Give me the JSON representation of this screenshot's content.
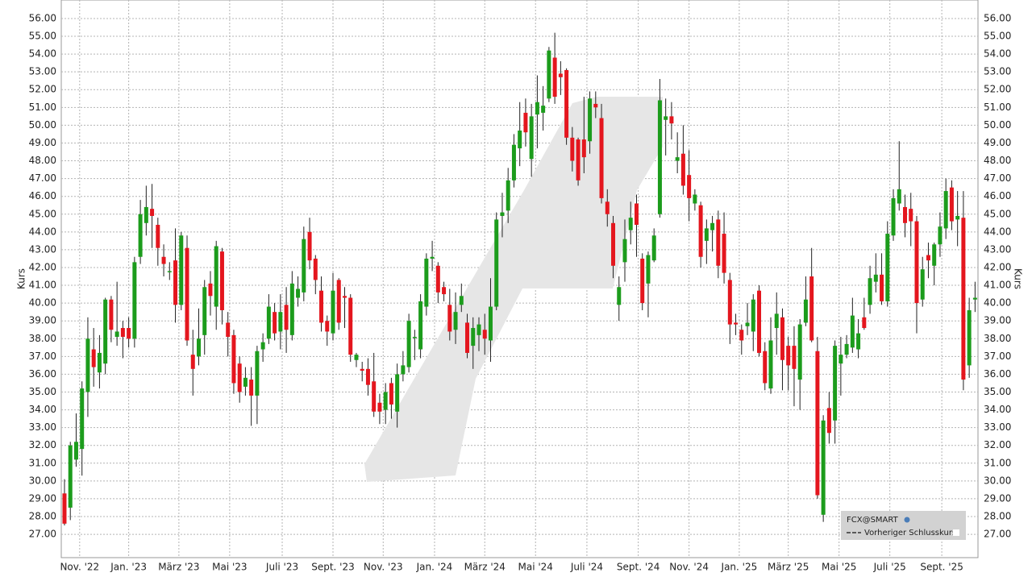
{
  "chart_data": {
    "type": "candlestick",
    "ylabel": "Kurs",
    "grid": true,
    "up_color": "#1c9c1c",
    "down_color": "#e4161e",
    "legend": "lower right",
    "legend_items": [
      "FCX@SMART",
      "Vorheriger Schlusskurs"
    ],
    "xlim": [
      -0.55,
      156.5
    ],
    "ylim": [
      25.69,
      57.04
    ],
    "xticks": [
      {
        "value": 2.6,
        "label": "Nov. '22"
      },
      {
        "value": 11.0,
        "label": "Jan. '23"
      },
      {
        "value": 19.6,
        "label": "März '23"
      },
      {
        "value": 28.3,
        "label": "Mai '23"
      },
      {
        "value": 37.3,
        "label": "Juli '23"
      },
      {
        "value": 46.0,
        "label": "Sept. '23"
      },
      {
        "value": 54.6,
        "label": "Nov. '23"
      },
      {
        "value": 63.4,
        "label": "Jan. '24"
      },
      {
        "value": 72.0,
        "label": "März '24"
      },
      {
        "value": 80.7,
        "label": "Mai '24"
      },
      {
        "value": 89.5,
        "label": "Juli '24"
      },
      {
        "value": 98.3,
        "label": "Sept. '24"
      },
      {
        "value": 107.0,
        "label": "Nov. '24"
      },
      {
        "value": 115.6,
        "label": "Jan. '25"
      },
      {
        "value": 124.0,
        "label": "März '25"
      },
      {
        "value": 132.7,
        "label": "Mai '25"
      },
      {
        "value": 141.4,
        "label": "Juli '25"
      },
      {
        "value": 150.3,
        "label": "Sept. '25"
      }
    ],
    "yticks": [
      {
        "value": 27,
        "label": "27.00"
      },
      {
        "value": 28,
        "label": "28.00"
      },
      {
        "value": 29,
        "label": "29.00"
      },
      {
        "value": 30,
        "label": "30.00"
      },
      {
        "value": 31,
        "label": "31.00"
      },
      {
        "value": 32,
        "label": "32.00"
      },
      {
        "value": 33,
        "label": "33.00"
      },
      {
        "value": 34,
        "label": "34.00"
      },
      {
        "value": 35,
        "label": "35.00"
      },
      {
        "value": 36,
        "label": "36.00"
      },
      {
        "value": 37,
        "label": "37.00"
      },
      {
        "value": 38,
        "label": "38.00"
      },
      {
        "value": 39,
        "label": "39.00"
      },
      {
        "value": 40,
        "label": "40.00"
      },
      {
        "value": 41,
        "label": "41.00"
      },
      {
        "value": 42,
        "label": "42.00"
      },
      {
        "value": 43,
        "label": "43.00"
      },
      {
        "value": 44,
        "label": "44.00"
      },
      {
        "value": 45,
        "label": "45.00"
      },
      {
        "value": 46,
        "label": "46.00"
      },
      {
        "value": 47,
        "label": "47.00"
      },
      {
        "value": 48,
        "label": "48.00"
      },
      {
        "value": 49,
        "label": "49.00"
      },
      {
        "value": 50,
        "label": "50.00"
      },
      {
        "value": 51,
        "label": "51.00"
      },
      {
        "value": 52,
        "label": "52.00"
      },
      {
        "value": 53,
        "label": "53.00"
      },
      {
        "value": 54,
        "label": "54.00"
      },
      {
        "value": 55,
        "label": "55.00"
      },
      {
        "value": 56,
        "label": "56.00"
      }
    ],
    "open": [
      29.3,
      28.5,
      31.2,
      31.8,
      35,
      37.4,
      36.1,
      36.6,
      40.2,
      38.1,
      38.6,
      38.6,
      38,
      42.6,
      44.5,
      45.3,
      44.4,
      42.6,
      41.8,
      42.4,
      39.9,
      43.1,
      37.1,
      37,
      38.2,
      41.1,
      39.8,
      42.9,
      38.9,
      38.2,
      36.6,
      35.3,
      35.7,
      34.8,
      37.4,
      38,
      39.5,
      38.4,
      39.9,
      38.2,
      40.3,
      40.6,
      44,
      42.5,
      40.7,
      39,
      38.3,
      41.3,
      40.4,
      40.3,
      36.8,
      36.3,
      36.3,
      35.6,
      34.4,
      34,
      35.5,
      33.9,
      36,
      36.4,
      38.1,
      37.4,
      39.8,
      42.5,
      42.1,
      40.9,
      39.9,
      38.5,
      39.9,
      38.9,
      37.6,
      38.2,
      38.5,
      37.9,
      39.8,
      44.9,
      45.2,
      46.9,
      48.7,
      50.7,
      48.1,
      50.6,
      50.7,
      51.5,
      53.8,
      52.9,
      53.1,
      49.3,
      49.2,
      49.2,
      49.1,
      51.2,
      50.4,
      45.7,
      44.5,
      39.9,
      42.3,
      44.1,
      45.6,
      42.5,
      41.1,
      42.4,
      45,
      50.3,
      50.5,
      48,
      48.4,
      47.2,
      45.6,
      45.5,
      43.5,
      44.1,
      44.7,
      43.9,
      41.3,
      38.9,
      38.5,
      38.7,
      38.4,
      40.7,
      37.3,
      35.2,
      38.6,
      39.2,
      37.6,
      37.6,
      35.7,
      38.9,
      41.5,
      37.3,
      28.1,
      34.1,
      33.4,
      36.6,
      37.1,
      37.5,
      37.4,
      39.2,
      39.9,
      41.2,
      41.6,
      40.1,
      43.8,
      45.6,
      45.4,
      45.3,
      44.6,
      40.2,
      42.7,
      42.1,
      43.3,
      44.2,
      46.5,
      44.7,
      44.8,
      36.5,
      40.2
    ],
    "high": [
      30.1,
      32.2,
      33.8,
      35.6,
      39.2,
      38.6,
      38.2,
      40.3,
      40.4,
      41.2,
      39,
      39.2,
      42.6,
      45.8,
      46.6,
      46.7,
      44.8,
      43.3,
      42.3,
      44.2,
      44,
      43.8,
      38.5,
      39.7,
      41.3,
      41.8,
      43.5,
      43.1,
      39.5,
      38.5,
      37,
      36.4,
      36.4,
      37.6,
      38.3,
      40.5,
      40,
      40.5,
      40.9,
      41.8,
      41.5,
      44.3,
      44.8,
      42.7,
      41.5,
      39.3,
      41.7,
      41.4,
      40.9,
      40.5,
      37.2,
      36.7,
      36.9,
      37.2,
      34.9,
      35.5,
      35.8,
      36.6,
      37.3,
      39.4,
      38.5,
      40.5,
      42.8,
      43.5,
      42.3,
      41.2,
      40.8,
      40.6,
      41.1,
      39.4,
      39.2,
      39.2,
      39.4,
      41.4,
      45.1,
      46.2,
      47.6,
      49.5,
      51.3,
      51.5,
      51.2,
      52.8,
      52.2,
      54.4,
      55.2,
      53.6,
      53.2,
      49.9,
      49.3,
      51.6,
      51.9,
      51.9,
      51.2,
      46.4,
      44.9,
      41.5,
      44.7,
      45.7,
      46.1,
      42.8,
      42.9,
      44.2,
      52.6,
      51.5,
      51.3,
      49.6,
      50,
      48.6,
      46.4,
      45.7,
      44.7,
      44.9,
      45.2,
      45.1,
      41.7,
      39.4,
      38.8,
      40,
      40.5,
      41,
      37.8,
      39.2,
      40.6,
      39.7,
      38.1,
      38.7,
      39.1,
      41.5,
      43.1,
      38.1,
      33.7,
      35,
      37.9,
      38.1,
      38.2,
      40.3,
      39.1,
      40.3,
      42.1,
      42.8,
      42.8,
      44.6,
      46.4,
      49.1,
      46.1,
      46.2,
      44.9,
      42.6,
      43.4,
      43.4,
      45.1,
      47,
      46.9,
      46.3,
      46.3,
      40.3,
      41.2
    ],
    "low": [
      27.5,
      27.8,
      30.8,
      30.3,
      33.6,
      35.3,
      35.2,
      36,
      37.8,
      37.6,
      36.9,
      37.5,
      37.5,
      42.2,
      43.8,
      43.1,
      42.1,
      41.5,
      41.3,
      38.9,
      39.6,
      37.6,
      34.8,
      36.5,
      37.1,
      39.3,
      38.5,
      38.8,
      37,
      34.9,
      34.4,
      34.8,
      33.1,
      33.2,
      36.7,
      37.7,
      37.9,
      37.4,
      37.2,
      37.9,
      39.8,
      40.1,
      41.9,
      40.5,
      38.4,
      37.6,
      37.9,
      38.5,
      38.6,
      36.7,
      36.4,
      35.6,
      34.8,
      33.6,
      33.2,
      33.2,
      33.5,
      33,
      35.6,
      36.1,
      36.8,
      36.9,
      39.3,
      41.8,
      40,
      40.1,
      37.9,
      37.7,
      39.5,
      36.9,
      36.3,
      37.3,
      37.1,
      36.7,
      39.6,
      43.7,
      44.5,
      46.5,
      47.7,
      48.8,
      47.1,
      48.7,
      49.7,
      51.3,
      51.2,
      51.7,
      48.9,
      47.4,
      46.6,
      47.3,
      48.4,
      50.4,
      45.6,
      44.3,
      41.4,
      39,
      41.2,
      43.3,
      42.6,
      39.6,
      39.2,
      42.3,
      44.8,
      48.3,
      49.2,
      47.3,
      46.1,
      44.6,
      45.2,
      42,
      42.2,
      42.9,
      41.4,
      41.1,
      37.7,
      38.2,
      37.1,
      38.2,
      37.3,
      37,
      35.1,
      34.9,
      37.1,
      35.1,
      35.1,
      34.2,
      34,
      38.7,
      37.8,
      29,
      27.7,
      32.1,
      32.1,
      34.8,
      36.9,
      37.2,
      36.9,
      38.5,
      39.4,
      40.6,
      39.9,
      39.8,
      43.5,
      45.2,
      43.7,
      43.2,
      38.3,
      39.8,
      41.4,
      41,
      42.6,
      43.6,
      44.1,
      43.2,
      35.1,
      35.8,
      39.5
    ],
    "close": [
      27.6,
      32,
      32.2,
      35.2,
      38,
      36.4,
      37.2,
      40.2,
      38.5,
      38.4,
      38.1,
      38,
      42.3,
      45,
      45.4,
      44.9,
      43.1,
      42.2,
      41.8,
      39.9,
      43.8,
      37.9,
      36.3,
      38,
      40.9,
      40.4,
      43.2,
      39.6,
      38.1,
      35.5,
      35,
      35.8,
      34.8,
      37.3,
      37.8,
      39.8,
      38.3,
      39.5,
      38.5,
      41.1,
      40.8,
      43.6,
      42.4,
      41.3,
      38.9,
      38.4,
      40.7,
      38.9,
      40.3,
      37.1,
      37.1,
      36.2,
      35.4,
      33.9,
      33.9,
      35,
      34.3,
      36,
      36.5,
      39,
      38.1,
      40.1,
      42.5,
      42.6,
      40.6,
      40.5,
      38.4,
      39.5,
      40.4,
      37.2,
      38.6,
      38.8,
      38,
      39.8,
      44.7,
      45.1,
      46.9,
      48.9,
      49.7,
      49.6,
      50.5,
      51.3,
      51.1,
      54.2,
      51.6,
      52.7,
      49.3,
      48,
      46.9,
      48.2,
      51.5,
      51,
      45.9,
      45,
      42.1,
      40.9,
      43.6,
      44.8,
      44.4,
      40,
      42.7,
      43.8,
      51.4,
      50.5,
      50.1,
      48.2,
      46.6,
      45.9,
      46.1,
      42.6,
      44.2,
      44.5,
      42.1,
      41.7,
      38.8,
      38.8,
      37.9,
      38.9,
      40.2,
      37.2,
      35.5,
      37.9,
      39.4,
      36.8,
      36.5,
      36.3,
      38.8,
      40.2,
      37.9,
      29.2,
      33.4,
      32.7,
      37.6,
      37.1,
      37.7,
      39.3,
      38.3,
      38.6,
      41.4,
      41.6,
      40.1,
      43.9,
      45.9,
      46.4,
      44.5,
      44.6,
      40,
      41.9,
      42.4,
      43.3,
      44.3,
      46.3,
      44.6,
      44.9,
      35.7,
      39.6,
      40.3
    ]
  }
}
